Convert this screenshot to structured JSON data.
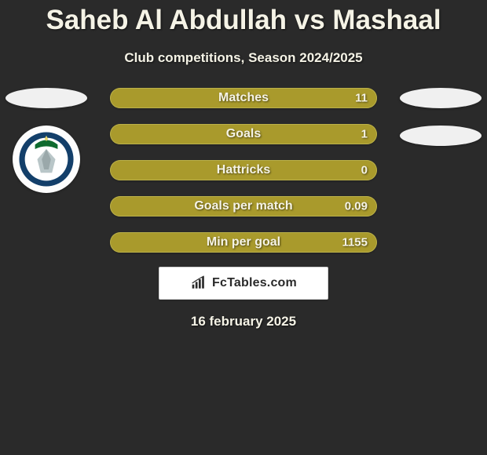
{
  "colors": {
    "page_bg": "#2a2a2a",
    "title_text": "#f5f3e6",
    "subtitle_text": "#f5f3e6",
    "stat_bar_bg": "#a99a2c",
    "stat_bar_border": "#bbb14a",
    "stat_label_text": "#f5f3e6",
    "stat_value_text": "#f5f3e6",
    "branding_bg": "#ffffff",
    "branding_border": "#cfcfcf",
    "branding_text": "#2a2a2a",
    "date_text": "#f5f3e6"
  },
  "header": {
    "title": "Saheb Al Abdullah vs Mashaal",
    "subtitle": "Club competitions, Season 2024/2025"
  },
  "stats": [
    {
      "label": "Matches",
      "value": "11",
      "fill_pct": 100
    },
    {
      "label": "Goals",
      "value": "1",
      "fill_pct": 100
    },
    {
      "label": "Hattricks",
      "value": "0",
      "fill_pct": 100
    },
    {
      "label": "Goals per match",
      "value": "0.09",
      "fill_pct": 100
    },
    {
      "label": "Min per goal",
      "value": "1155",
      "fill_pct": 100
    }
  ],
  "avatars": {
    "left_badge": {
      "ribbon_color": "#0f6b2f",
      "emblem_color": "#b9c6c8",
      "ring_color": "#133f6a",
      "inner_bg": "#ffffff"
    }
  },
  "branding": {
    "text": "FcTables.com",
    "icon_color": "#2a2a2a"
  },
  "footer": {
    "date": "16 february 2025"
  }
}
